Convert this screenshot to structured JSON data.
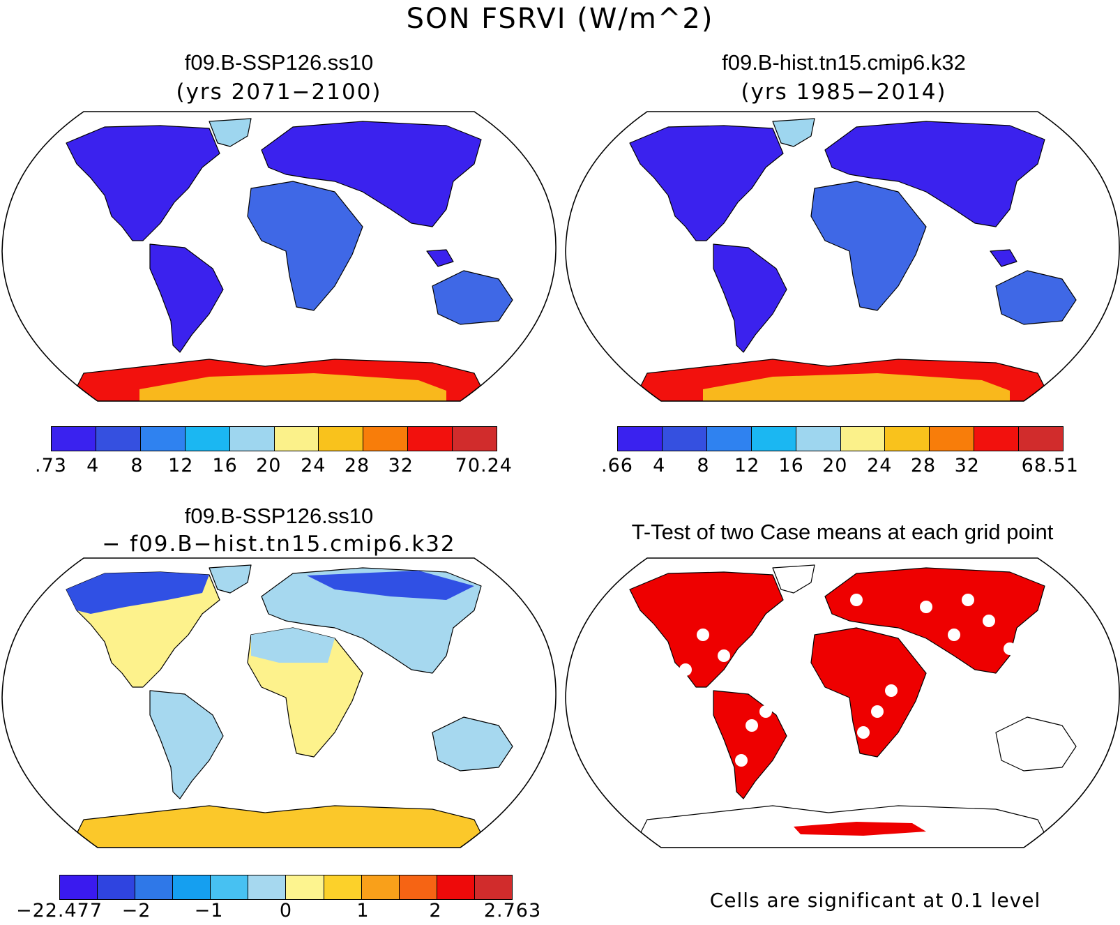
{
  "figure": {
    "main_title": "SON FSRVI (W/m^2)"
  },
  "panels": {
    "top_left": {
      "title": "f09.B-SSP126.ss10",
      "subtitle": "(yrs 2071−2100)",
      "colorbar": {
        "colors": [
          "#3a22ef",
          "#3550e0",
          "#2f82f0",
          "#1bb7f2",
          "#9ed6ef",
          "#fbf18a",
          "#f9c21c",
          "#f87d0a",
          "#f2110d",
          "#d12c2c"
        ],
        "ticks": [
          ".73",
          "4",
          "8",
          "12",
          "16",
          "20",
          "24",
          "28",
          "32",
          "70.24"
        ]
      }
    },
    "top_right": {
      "title": "f09.B-hist.tn15.cmip6.k32",
      "subtitle": "(yrs 1985−2014)",
      "colorbar": {
        "colors": [
          "#3a22ef",
          "#3550e0",
          "#2f82f0",
          "#1bb7f2",
          "#9ed6ef",
          "#fbf18a",
          "#f9c21c",
          "#f87d0a",
          "#f2110d",
          "#d12c2c"
        ],
        "ticks": [
          ".66",
          "4",
          "8",
          "12",
          "16",
          "20",
          "24",
          "28",
          "32",
          "68.51"
        ]
      }
    },
    "bottom_left": {
      "title": "f09.B-SSP126.ss10",
      "subtitle": "− f09.B−hist.tn15.cmip6.k32",
      "colorbar": {
        "colors": [
          "#3a1aef",
          "#2f44e0",
          "#2f78e8",
          "#159ff0",
          "#47c1f2",
          "#a6d8ef",
          "#fdf48f",
          "#fcd12a",
          "#f9a01a",
          "#f66414",
          "#ee0a0a",
          "#d12c2c"
        ],
        "ticks": [
          "−22.477",
          "−2",
          "−1",
          "0",
          "1",
          "2",
          "2.763"
        ]
      }
    },
    "bottom_right": {
      "title": "T-Test of two Case means at each grid point",
      "note": "Cells are significant at 0.1 level",
      "significance_color": "#ee0000"
    }
  },
  "land_colors": {
    "mean_north": "#3b22ee",
    "mean_tropics": "#3f68e6",
    "mean_antarctica": "#f2110d",
    "mean_antarctica_inner": "#f9b81c",
    "mean_greenland": "#9ed6ef",
    "diff_land": "#fdf28c",
    "diff_cool": "#a6d8ef",
    "diff_north": "#3050e4",
    "diff_antarctica": "#fbc82a"
  }
}
